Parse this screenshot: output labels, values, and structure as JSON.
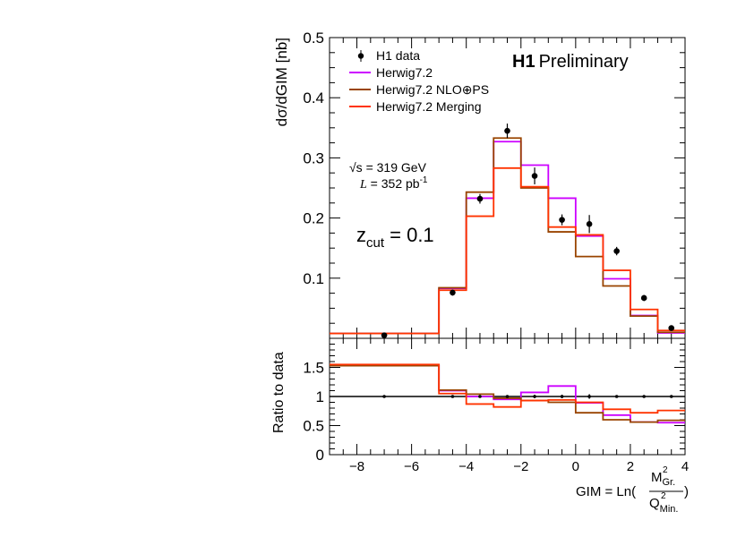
{
  "chart_data": {
    "type": "step",
    "x_edges": [
      -9,
      -5,
      -4,
      -3,
      -2,
      -1,
      0,
      1,
      2,
      3,
      4
    ],
    "xlim": [
      -9,
      4
    ],
    "x_ticks": [
      -8,
      -6,
      -4,
      -2,
      0,
      2,
      4
    ],
    "x_tick_labels": [
      "−8",
      "−6",
      "−4",
      "−2",
      "0",
      "2",
      "4"
    ],
    "xlabel": "GIM = Ln(",
    "xlabel_num": "M",
    "xlabel_num_sup": "2",
    "xlabel_num_sub": "Gr.",
    "xlabel_den": "Q",
    "xlabel_den_sup": "2",
    "xlabel_den_sub": "Min.",
    "xlabel_close": ")",
    "top_panel": {
      "ylabel": "dσ/dGIM [nb]",
      "ylim": [
        0,
        0.5
      ],
      "y_ticks": [
        0.1,
        0.2,
        0.3,
        0.4,
        0.5
      ],
      "y_tick_labels": [
        "0.1",
        "0.2",
        "0.3",
        "0.4",
        "0.5"
      ],
      "data": {
        "name": "H1 data",
        "x": [
          -7,
          -4.5,
          -3.5,
          -2.5,
          -1.5,
          -0.5,
          0.5,
          1.5,
          2.5,
          3.5
        ],
        "y": [
          0.005,
          0.076,
          0.232,
          0.345,
          0.27,
          0.197,
          0.19,
          0.145,
          0.067,
          0.017
        ],
        "err": [
          0.003,
          0.005,
          0.008,
          0.012,
          0.014,
          0.009,
          0.015,
          0.007,
          0.005,
          0.003
        ]
      },
      "series": [
        {
          "name": "Herwig7.2",
          "color": "#cc00ff",
          "values": [
            0.008,
            0.083,
            0.233,
            0.327,
            0.288,
            0.233,
            0.17,
            0.099,
            0.038,
            0.009
          ]
        },
        {
          "name": "Herwig7.2 NLO⊕PS",
          "color": "#994400",
          "values": [
            0.008,
            0.084,
            0.243,
            0.333,
            0.25,
            0.177,
            0.136,
            0.087,
            0.037,
            0.01
          ]
        },
        {
          "name": "Herwig7.2 Merging",
          "color": "#ff3300",
          "values": [
            0.008,
            0.08,
            0.203,
            0.283,
            0.252,
            0.185,
            0.172,
            0.113,
            0.048,
            0.013
          ]
        }
      ]
    },
    "bottom_panel": {
      "ylabel": "Ratio to data",
      "ylim": [
        0,
        2
      ],
      "y_ticks": [
        0,
        0.5,
        1,
        1.5
      ],
      "y_tick_labels": [
        "0",
        "0.5",
        "1",
        "1.5"
      ],
      "data": {
        "x": [
          -7,
          -4.5,
          -3.5,
          -2.5,
          -1.5,
          -0.5,
          0.5,
          1.5,
          2.5,
          3.5
        ],
        "y": [
          1,
          1,
          1,
          1,
          1,
          1,
          1,
          1,
          1,
          1
        ],
        "err": [
          0.02,
          0.02,
          0.02,
          0.02,
          0.03,
          0.03,
          0.04,
          0.02,
          0.02,
          0.02
        ]
      },
      "series": [
        {
          "name": "Herwig7.2",
          "color": "#cc00ff",
          "values": [
            1.53,
            1.1,
            1.0,
            0.95,
            1.07,
            1.18,
            0.89,
            0.68,
            0.56,
            0.55
          ]
        },
        {
          "name": "Herwig7.2 NLO⊕PS",
          "color": "#994400",
          "values": [
            1.53,
            1.11,
            1.04,
            0.97,
            0.93,
            0.9,
            0.72,
            0.6,
            0.56,
            0.59
          ]
        },
        {
          "name": "Herwig7.2 Merging",
          "color": "#ff3300",
          "values": [
            1.55,
            1.05,
            0.87,
            0.82,
            0.93,
            0.94,
            0.9,
            0.78,
            0.72,
            0.76
          ]
        }
      ]
    },
    "legend": {
      "placement": "top-left",
      "entries": [
        "H1 data",
        "Herwig7.2",
        "Herwig7.2 NLO⊕PS",
        "Herwig7.2 Merging"
      ]
    },
    "annotations": {
      "experiment": "H1",
      "status": "Preliminary",
      "energy_pre": "√s",
      "energy_post": " = 319 GeV",
      "lumi_sym": "L",
      "lumi_post": " = 352 pb",
      "lumi_sup": "-1",
      "zcut_pre": "z",
      "zcut_sub": "cut",
      "zcut_post": " = 0.1"
    }
  }
}
